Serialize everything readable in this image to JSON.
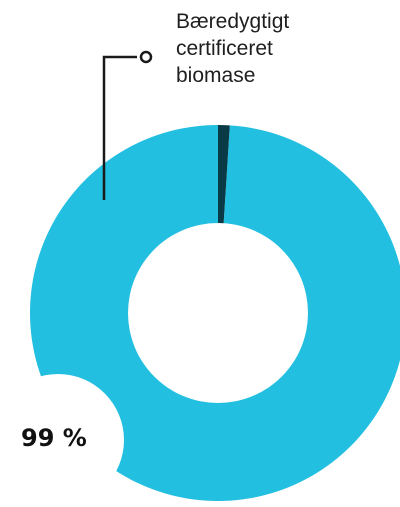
{
  "chart_data": {
    "type": "pie",
    "slices": [
      {
        "label": "Bæredygtigt certificeret biomase",
        "value": 99,
        "color": "#22bfe0"
      },
      {
        "label": "",
        "value": 1,
        "color": "#0b3a47"
      }
    ],
    "annotations": {
      "callout_lines": [
        "Bæredygtigt",
        "certificeret",
        "biomase"
      ],
      "percent_label": "99 %"
    },
    "style": "donut"
  }
}
